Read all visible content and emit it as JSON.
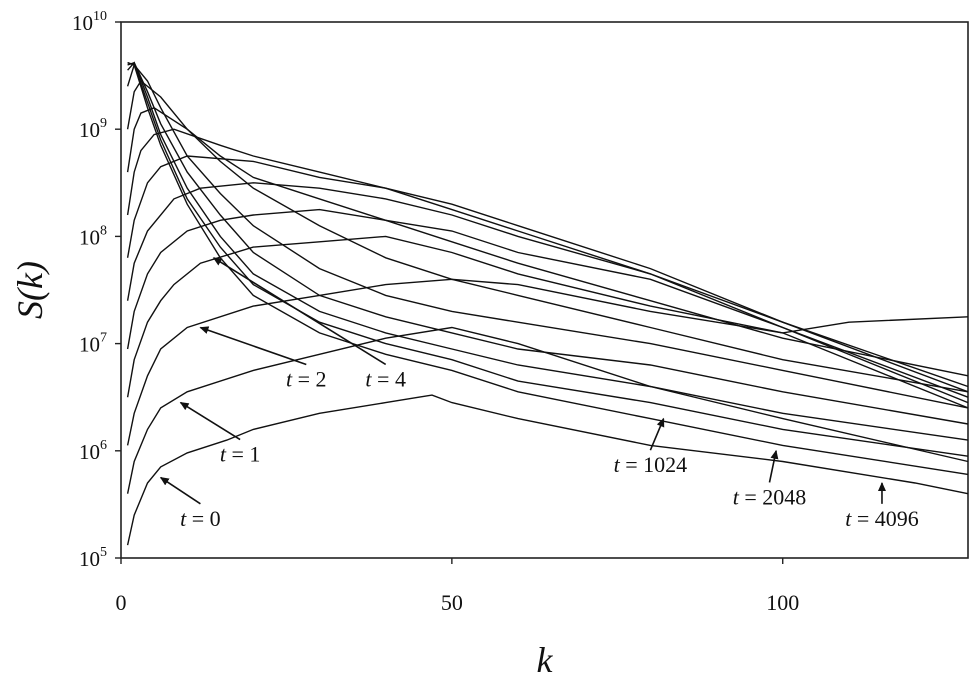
{
  "chart_data": {
    "type": "line",
    "title": "",
    "xlabel": "k",
    "ylabel": "S(k)",
    "xlim": [
      0,
      128
    ],
    "ylim_exponents": [
      5,
      10
    ],
    "yscale": "log",
    "grid": false,
    "legend": "none",
    "line_color": "#111111",
    "x_ticks": [
      "0",
      "50",
      "100"
    ],
    "y_tick_base": "10",
    "y_tick_exponents": [
      "5",
      "6",
      "7",
      "8",
      "9",
      "10"
    ],
    "annotations": [
      {
        "label": "t = 0",
        "text_k": 12,
        "text_logS": 5.3,
        "arrow_to_k": 6,
        "arrow_to_logS": 5.75
      },
      {
        "label": "t = 1",
        "text_k": 18,
        "text_logS": 5.9,
        "arrow_to_k": 9,
        "arrow_to_logS": 6.45
      },
      {
        "label": "t = 2",
        "text_k": 28,
        "text_logS": 6.6,
        "arrow_to_k": 12,
        "arrow_to_logS": 7.15
      },
      {
        "label": "t = 4",
        "text_k": 40,
        "text_logS": 6.6,
        "arrow_to_k": 14,
        "arrow_to_logS": 7.8
      },
      {
        "label": "t = 1024",
        "text_k": 80,
        "text_logS": 5.8,
        "arrow_to_k": 82,
        "arrow_to_logS": 6.3
      },
      {
        "label": "t = 2048",
        "text_k": 98,
        "text_logS": 5.5,
        "arrow_to_k": 99,
        "arrow_to_logS": 6.0
      },
      {
        "label": "t = 4096",
        "text_k": 115,
        "text_logS": 5.3,
        "arrow_to_k": 115,
        "arrow_to_logS": 5.7
      }
    ],
    "series": [
      {
        "label": "t = 0",
        "points": [
          [
            1,
            5.12
          ],
          [
            2,
            5.4
          ],
          [
            4,
            5.7
          ],
          [
            6,
            5.85
          ],
          [
            10,
            5.98
          ],
          [
            16,
            6.1
          ],
          [
            20,
            6.2
          ],
          [
            30,
            6.35
          ],
          [
            40,
            6.45
          ],
          [
            45,
            6.5
          ],
          [
            47,
            6.52
          ],
          [
            50,
            6.45
          ],
          [
            60,
            6.3
          ],
          [
            80,
            6.05
          ],
          [
            100,
            5.9
          ],
          [
            120,
            5.7
          ],
          [
            128,
            5.6
          ]
        ]
      },
      {
        "label": "t = 1",
        "points": [
          [
            1,
            5.6
          ],
          [
            2,
            5.9
          ],
          [
            4,
            6.2
          ],
          [
            6,
            6.4
          ],
          [
            10,
            6.55
          ],
          [
            20,
            6.75
          ],
          [
            30,
            6.9
          ],
          [
            40,
            7.05
          ],
          [
            50,
            7.15
          ],
          [
            60,
            7.0
          ],
          [
            80,
            6.6
          ],
          [
            100,
            6.3
          ],
          [
            128,
            5.9
          ]
        ]
      },
      {
        "label": "",
        "points": [
          [
            1,
            6.05
          ],
          [
            2,
            6.35
          ],
          [
            4,
            6.7
          ],
          [
            6,
            6.95
          ],
          [
            10,
            7.15
          ],
          [
            20,
            7.35
          ],
          [
            30,
            7.45
          ],
          [
            40,
            7.55
          ],
          [
            50,
            7.6
          ],
          [
            60,
            7.55
          ],
          [
            80,
            7.3
          ],
          [
            100,
            7.1
          ],
          [
            110,
            7.2
          ],
          [
            128,
            7.25
          ]
        ]
      },
      {
        "label": "t = 2",
        "points": [
          [
            1,
            6.5
          ],
          [
            2,
            6.85
          ],
          [
            4,
            7.2
          ],
          [
            6,
            7.4
          ],
          [
            8,
            7.55
          ],
          [
            12,
            7.75
          ],
          [
            20,
            7.9
          ],
          [
            30,
            7.95
          ],
          [
            40,
            8.0
          ],
          [
            50,
            7.85
          ],
          [
            60,
            7.65
          ],
          [
            80,
            7.35
          ],
          [
            100,
            7.1
          ],
          [
            128,
            6.4
          ]
        ]
      },
      {
        "label": "",
        "points": [
          [
            1,
            6.95
          ],
          [
            2,
            7.3
          ],
          [
            4,
            7.65
          ],
          [
            6,
            7.85
          ],
          [
            10,
            8.05
          ],
          [
            15,
            8.15
          ],
          [
            20,
            8.2
          ],
          [
            30,
            8.25
          ],
          [
            40,
            8.15
          ],
          [
            50,
            8.05
          ],
          [
            60,
            7.85
          ],
          [
            80,
            7.6
          ],
          [
            100,
            7.15
          ],
          [
            128,
            6.5
          ]
        ]
      },
      {
        "label": "t = 4",
        "points": [
          [
            1,
            7.4
          ],
          [
            2,
            7.75
          ],
          [
            4,
            8.05
          ],
          [
            8,
            8.35
          ],
          [
            12,
            8.45
          ],
          [
            20,
            8.5
          ],
          [
            30,
            8.45
          ],
          [
            40,
            8.35
          ],
          [
            50,
            8.2
          ],
          [
            60,
            8.0
          ],
          [
            80,
            7.65
          ],
          [
            100,
            7.2
          ],
          [
            128,
            6.55
          ]
        ]
      },
      {
        "label": "",
        "points": [
          [
            1,
            7.8
          ],
          [
            2,
            8.15
          ],
          [
            4,
            8.5
          ],
          [
            6,
            8.65
          ],
          [
            10,
            8.75
          ],
          [
            20,
            8.7
          ],
          [
            30,
            8.55
          ],
          [
            40,
            8.45
          ],
          [
            50,
            8.3
          ],
          [
            60,
            8.1
          ],
          [
            80,
            7.7
          ],
          [
            100,
            7.2
          ],
          [
            128,
            6.6
          ]
        ]
      },
      {
        "label": "",
        "points": [
          [
            1,
            8.2
          ],
          [
            2,
            8.6
          ],
          [
            3,
            8.8
          ],
          [
            5,
            8.95
          ],
          [
            8,
            9.0
          ],
          [
            15,
            8.85
          ],
          [
            20,
            8.75
          ],
          [
            30,
            8.6
          ],
          [
            40,
            8.45
          ],
          [
            50,
            8.25
          ],
          [
            60,
            8.05
          ],
          [
            80,
            7.65
          ],
          [
            100,
            7.15
          ],
          [
            128,
            6.45
          ]
        ]
      },
      {
        "label": "",
        "points": [
          [
            1,
            8.6
          ],
          [
            2,
            9.0
          ],
          [
            3,
            9.15
          ],
          [
            5,
            9.2
          ],
          [
            10,
            9.0
          ],
          [
            15,
            8.75
          ],
          [
            20,
            8.55
          ],
          [
            30,
            8.35
          ],
          [
            40,
            8.15
          ],
          [
            50,
            7.95
          ],
          [
            60,
            7.75
          ],
          [
            80,
            7.4
          ],
          [
            100,
            7.05
          ],
          [
            128,
            6.7
          ]
        ]
      },
      {
        "label": "",
        "points": [
          [
            1,
            9.0
          ],
          [
            2,
            9.35
          ],
          [
            3,
            9.45
          ],
          [
            6,
            9.3
          ],
          [
            10,
            9.0
          ],
          [
            15,
            8.7
          ],
          [
            20,
            8.45
          ],
          [
            30,
            8.1
          ],
          [
            40,
            7.8
          ],
          [
            50,
            7.6
          ],
          [
            60,
            7.45
          ],
          [
            80,
            7.15
          ],
          [
            100,
            6.85
          ],
          [
            128,
            6.55
          ]
        ]
      },
      {
        "label": "",
        "points": [
          [
            1,
            9.4
          ],
          [
            2,
            9.6
          ],
          [
            4,
            9.45
          ],
          [
            6,
            9.2
          ],
          [
            10,
            8.75
          ],
          [
            15,
            8.4
          ],
          [
            20,
            8.1
          ],
          [
            30,
            7.7
          ],
          [
            40,
            7.45
          ],
          [
            50,
            7.3
          ],
          [
            60,
            7.2
          ],
          [
            80,
            7.0
          ],
          [
            100,
            6.75
          ],
          [
            128,
            6.4
          ]
        ]
      },
      {
        "label": "",
        "points": [
          [
            1,
            9.55
          ],
          [
            2,
            9.62
          ],
          [
            4,
            9.35
          ],
          [
            6,
            9.05
          ],
          [
            10,
            8.6
          ],
          [
            15,
            8.2
          ],
          [
            20,
            7.85
          ],
          [
            30,
            7.45
          ],
          [
            40,
            7.25
          ],
          [
            50,
            7.1
          ],
          [
            60,
            6.95
          ],
          [
            80,
            6.8
          ],
          [
            100,
            6.55
          ],
          [
            128,
            6.25
          ]
        ]
      },
      {
        "label": "t = 1024",
        "points": [
          [
            1,
            9.6
          ],
          [
            2,
            9.62
          ],
          [
            4,
            9.3
          ],
          [
            6,
            8.95
          ],
          [
            10,
            8.45
          ],
          [
            15,
            8.0
          ],
          [
            20,
            7.65
          ],
          [
            30,
            7.3
          ],
          [
            40,
            7.1
          ],
          [
            50,
            6.95
          ],
          [
            60,
            6.8
          ],
          [
            80,
            6.6
          ],
          [
            100,
            6.35
          ],
          [
            128,
            6.1
          ]
        ]
      },
      {
        "label": "t = 2048",
        "points": [
          [
            1,
            9.62
          ],
          [
            2,
            9.6
          ],
          [
            4,
            9.25
          ],
          [
            6,
            8.9
          ],
          [
            10,
            8.35
          ],
          [
            15,
            7.9
          ],
          [
            20,
            7.55
          ],
          [
            30,
            7.2
          ],
          [
            40,
            7.0
          ],
          [
            50,
            6.85
          ],
          [
            60,
            6.65
          ],
          [
            80,
            6.45
          ],
          [
            100,
            6.2
          ],
          [
            128,
            5.95
          ]
        ]
      },
      {
        "label": "t = 4096",
        "points": [
          [
            1,
            9.62
          ],
          [
            2,
            9.6
          ],
          [
            4,
            9.2
          ],
          [
            6,
            8.85
          ],
          [
            10,
            8.3
          ],
          [
            15,
            7.8
          ],
          [
            20,
            7.45
          ],
          [
            30,
            7.1
          ],
          [
            40,
            6.9
          ],
          [
            50,
            6.75
          ],
          [
            60,
            6.55
          ],
          [
            80,
            6.3
          ],
          [
            100,
            6.05
          ],
          [
            128,
            5.78
          ]
        ]
      }
    ]
  }
}
